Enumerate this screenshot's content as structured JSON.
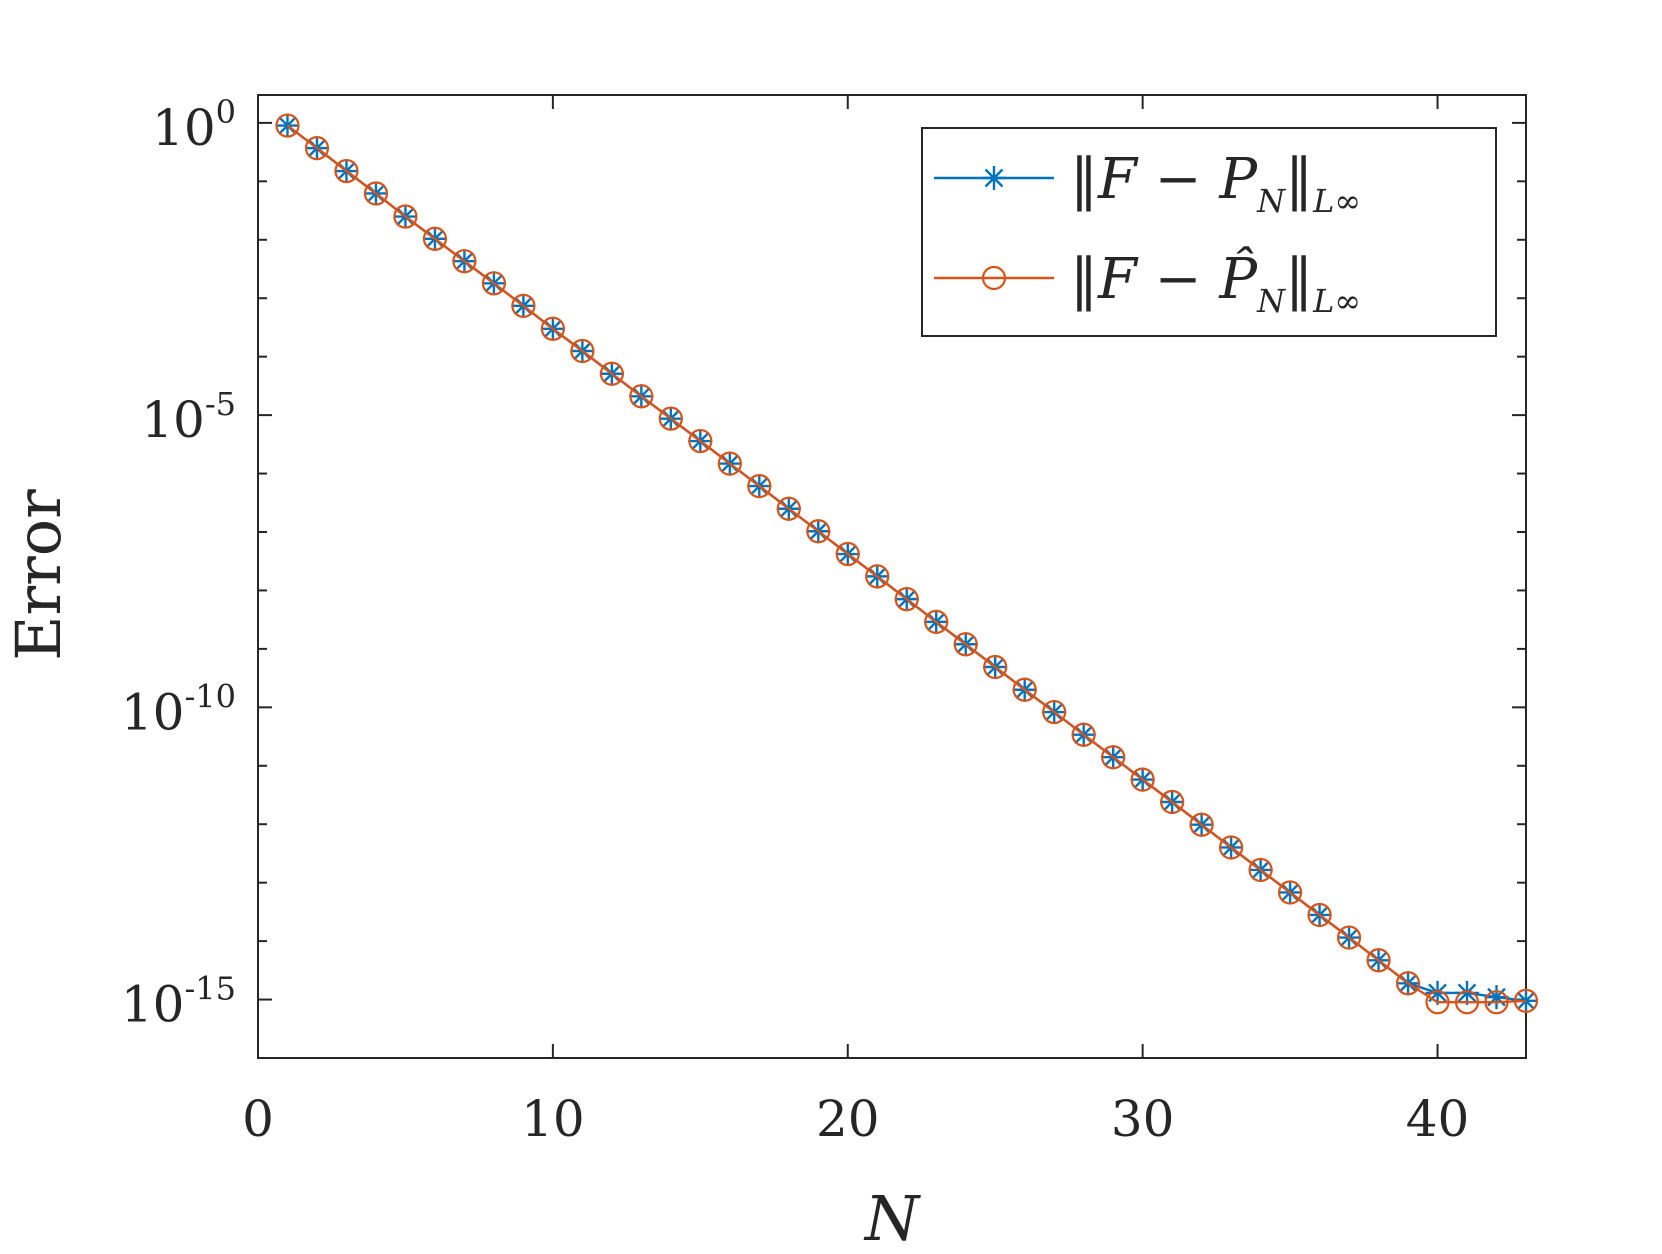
{
  "chart_data": {
    "type": "line",
    "title": "",
    "xlabel": "N",
    "ylabel": "Error",
    "yscale": "log",
    "xlim": [
      0,
      43
    ],
    "ylim": [
      1e-16,
      3
    ],
    "grid": false,
    "legend_position": "top-right",
    "x_ticks": [
      0,
      10,
      20,
      30,
      40
    ],
    "x_tick_labels": [
      "0",
      "10",
      "20",
      "30",
      "40"
    ],
    "y_ticks": [
      1,
      1e-05,
      1e-10,
      1e-15
    ],
    "y_tick_labels": [
      {
        "base": "10",
        "exp": "0"
      },
      {
        "base": "10",
        "exp": "-5"
      },
      {
        "base": "10",
        "exp": "-10"
      },
      {
        "base": "10",
        "exp": "-15"
      }
    ],
    "x": [
      1,
      2,
      3,
      4,
      5,
      6,
      7,
      8,
      9,
      10,
      11,
      12,
      13,
      14,
      15,
      16,
      17,
      18,
      19,
      20,
      21,
      22,
      23,
      24,
      25,
      26,
      27,
      28,
      29,
      30,
      31,
      32,
      33,
      34,
      35,
      36,
      37,
      38,
      39,
      40,
      41,
      42,
      43
    ],
    "series": [
      {
        "name": "‖F − P_N‖_{L∞}",
        "legend_label": {
          "prefix": "‖F − ",
          "var": "P",
          "sub": "N",
          "suffix": "‖",
          "norm_sub": "L∞"
        },
        "color": "#0072BD",
        "marker": "asterisk",
        "values": [
          0.9,
          0.37,
          0.15,
          0.062,
          0.025,
          0.0104,
          0.0043,
          0.0018,
          0.00074,
          0.0003,
          0.000125,
          5.1e-05,
          2.1e-05,
          8.7e-06,
          3.6e-06,
          1.48e-06,
          6.1e-07,
          2.5e-07,
          1.03e-07,
          4.2e-08,
          1.74e-08,
          7.1e-09,
          2.9e-09,
          1.2e-09,
          4.9e-10,
          2e-10,
          8.3e-11,
          3.4e-11,
          1.4e-11,
          5.8e-12,
          2.4e-12,
          9.8e-13,
          4e-13,
          1.65e-13,
          6.8e-14,
          2.8e-14,
          1.15e-14,
          4.7e-15,
          1.9e-15,
          1.3e-15,
          1.3e-15,
          1.1e-15,
          9.5e-16
        ]
      },
      {
        "name": "‖F − P̂_N‖_{L∞}",
        "legend_label": {
          "prefix": "‖F − ",
          "var": "P̂",
          "sub": "N",
          "suffix": "‖",
          "norm_sub": "L∞"
        },
        "color": "#D95319",
        "marker": "circle",
        "values": [
          0.9,
          0.37,
          0.15,
          0.062,
          0.025,
          0.0104,
          0.0043,
          0.0018,
          0.00074,
          0.0003,
          0.000125,
          5.1e-05,
          2.1e-05,
          8.7e-06,
          3.6e-06,
          1.48e-06,
          6.1e-07,
          2.5e-07,
          1.03e-07,
          4.2e-08,
          1.74e-08,
          7.1e-09,
          2.9e-09,
          1.2e-09,
          4.9e-10,
          2e-10,
          8.3e-11,
          3.4e-11,
          1.4e-11,
          5.8e-12,
          2.4e-12,
          9.8e-13,
          4e-13,
          1.65e-13,
          6.8e-14,
          2.8e-14,
          1.15e-14,
          4.7e-15,
          1.9e-15,
          9e-16,
          9e-16,
          9e-16,
          9.5e-16
        ]
      }
    ]
  }
}
